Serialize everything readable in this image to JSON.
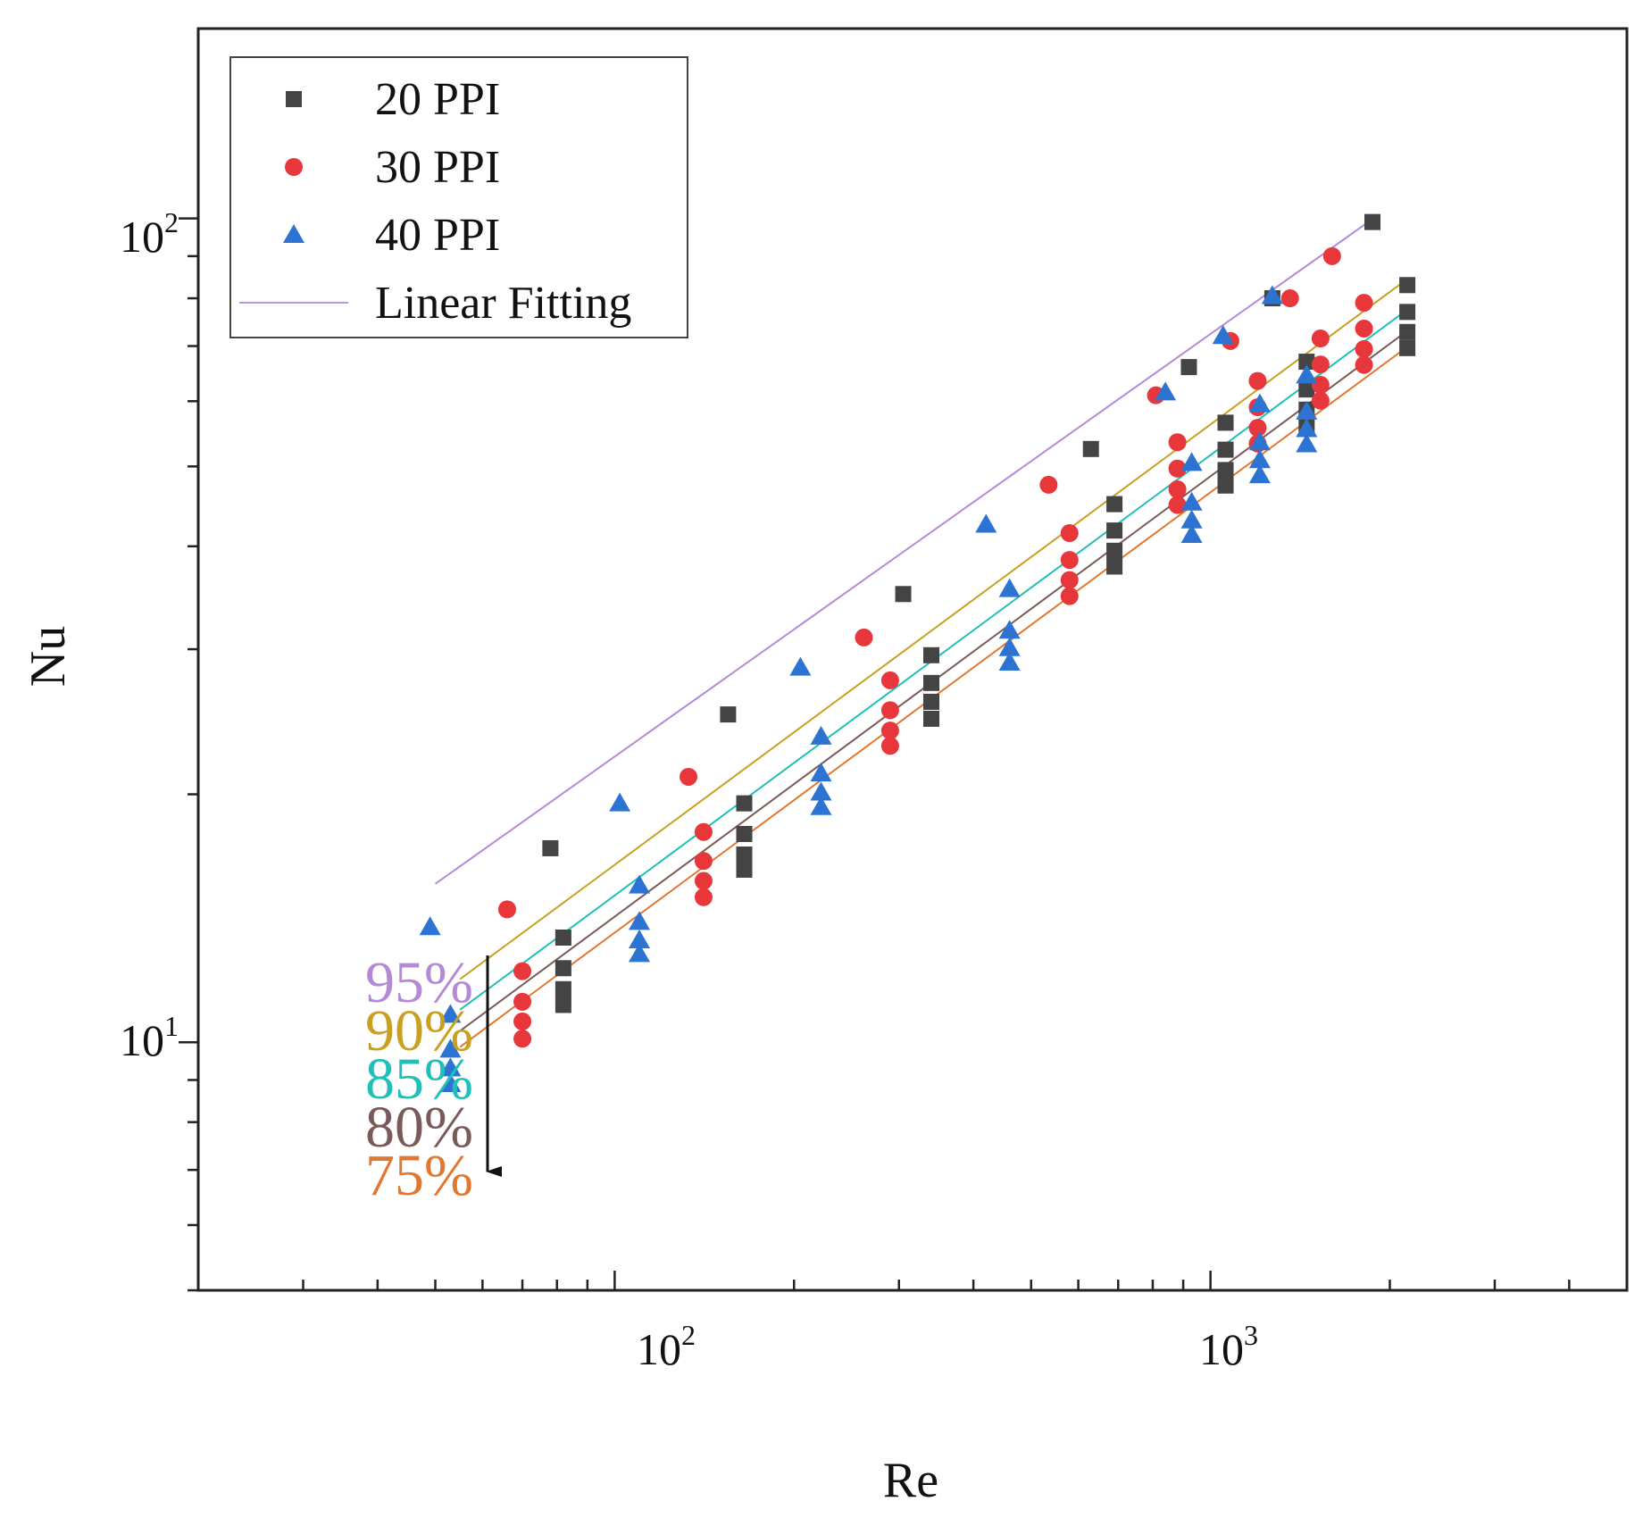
{
  "chart_data": {
    "type": "scatter",
    "title": "",
    "xlabel": "Re",
    "ylabel": "Nu",
    "xscale": "log",
    "yscale": "log",
    "xlim": [
      20,
      5000
    ],
    "ylim": [
      5,
      170
    ],
    "x_ticks": [
      {
        "value": 100,
        "base": "10",
        "exp": "2"
      },
      {
        "value": 1000,
        "base": "10",
        "exp": "3"
      }
    ],
    "y_ticks": [
      {
        "value": 10,
        "base": "10",
        "exp": "1"
      },
      {
        "value": 100,
        "base": "10",
        "exp": "2"
      }
    ],
    "legend": {
      "position": "top-left",
      "entries": [
        {
          "label": "20 PPI",
          "marker": "square",
          "color": "#444444"
        },
        {
          "label": "30 PPI",
          "marker": "circle",
          "color": "#e8373b"
        },
        {
          "label": "40 PPI",
          "marker": "triangle",
          "color": "#2c73d2"
        },
        {
          "label": "Linear Fitting",
          "marker": "line",
          "color": "#b49ad8"
        }
      ]
    },
    "fit_lines": [
      {
        "porosity": "95%",
        "color": "#b48ad8",
        "x_range": [
          50,
          1900
        ],
        "a": 2.093,
        "b": 0.513
      },
      {
        "porosity": "90%",
        "color": "#c9a020",
        "x_range": [
          55,
          2150
        ],
        "a": 1.401,
        "b": 0.5345
      },
      {
        "porosity": "85%",
        "color": "#20c0b8",
        "x_range": [
          55,
          2150
        ],
        "a": 1.286,
        "b": 0.5345
      },
      {
        "porosity": "80%",
        "color": "#7a5a58",
        "x_range": [
          55,
          2150
        ],
        "a": 1.212,
        "b": 0.5345
      },
      {
        "porosity": "75%",
        "color": "#e07830",
        "x_range": [
          55,
          2150
        ],
        "a": 1.159,
        "b": 0.5345
      }
    ],
    "series": [
      {
        "name": "20 PPI",
        "marker": "square",
        "color": "#444444",
        "x": [
          78,
          155,
          305,
          630,
          920,
          1270,
          1870,
          82,
          165,
          340,
          690,
          1060,
          1450,
          2140,
          82,
          165,
          340,
          690,
          1060,
          1450,
          2140,
          82,
          165,
          340,
          690,
          1060,
          1450,
          2140,
          82,
          165,
          340,
          690,
          1060,
          1450,
          2140
        ],
        "y": [
          17.2,
          25.0,
          35.0,
          52.5,
          66.0,
          80.0,
          99.0,
          13.4,
          19.5,
          29.5,
          45.0,
          56.5,
          67.0,
          83.0,
          12.3,
          17.9,
          27.3,
          41.8,
          52.4,
          62.0,
          77.0,
          11.6,
          16.9,
          25.9,
          39.5,
          49.5,
          58.6,
          72.8,
          11.1,
          16.2,
          24.7,
          37.8,
          47.4,
          56.0,
          69.6
        ]
      },
      {
        "name": "30 PPI",
        "marker": "circle",
        "color": "#e8373b",
        "x": [
          66,
          133,
          262,
          535,
          810,
          1080,
          1360,
          1600,
          70,
          141,
          290,
          580,
          880,
          1200,
          1530,
          1810,
          70,
          141,
          290,
          580,
          880,
          1200,
          1530,
          1810,
          70,
          141,
          290,
          580,
          880,
          1200,
          1530,
          1810,
          70,
          141,
          290,
          580,
          880,
          1200,
          1530,
          1810
        ],
        "y": [
          14.5,
          21.0,
          31.0,
          47.5,
          61.0,
          71.0,
          80.0,
          90.0,
          12.2,
          18.0,
          27.5,
          41.5,
          53.5,
          63.5,
          71.5,
          79.0,
          11.2,
          16.6,
          25.3,
          38.5,
          49.7,
          59.0,
          66.5,
          73.5,
          10.6,
          15.7,
          23.9,
          36.4,
          46.9,
          55.7,
          62.8,
          69.4,
          10.1,
          15.0,
          22.9,
          34.8,
          44.9,
          53.3,
          60.1,
          66.4
        ]
      },
      {
        "name": "40 PPI",
        "marker": "triangle",
        "color": "#2c73d2",
        "x": [
          49,
          102,
          205,
          420,
          840,
          1050,
          1270,
          53,
          110,
          222,
          460,
          930,
          1210,
          1450,
          53,
          110,
          222,
          460,
          930,
          1210,
          1450,
          53,
          110,
          222,
          460,
          930,
          1210,
          1450,
          53,
          110,
          222,
          460,
          930,
          1210,
          1450
        ],
        "y": [
          13.8,
          19.5,
          28.5,
          42.5,
          61.5,
          72.0,
          80.5,
          10.8,
          15.5,
          23.5,
          35.5,
          50.5,
          59.5,
          64.5,
          9.8,
          14.0,
          21.2,
          31.6,
          45.2,
          53.5,
          58.3,
          9.3,
          13.3,
          20.1,
          30.1,
          43.0,
          50.9,
          55.5,
          8.9,
          12.8,
          19.3,
          28.9,
          41.3,
          48.8,
          53.2
        ]
      }
    ],
    "annotations": {
      "porosity_labels": [
        {
          "text": "95%",
          "color": "#b48ad8"
        },
        {
          "text": "90%",
          "color": "#c9a020"
        },
        {
          "text": "85%",
          "color": "#20c0b8"
        },
        {
          "text": "80%",
          "color": "#7a5a58"
        },
        {
          "text": "75%",
          "color": "#e07830"
        }
      ],
      "arrow": "downward arrow indicating decreasing porosity"
    }
  }
}
